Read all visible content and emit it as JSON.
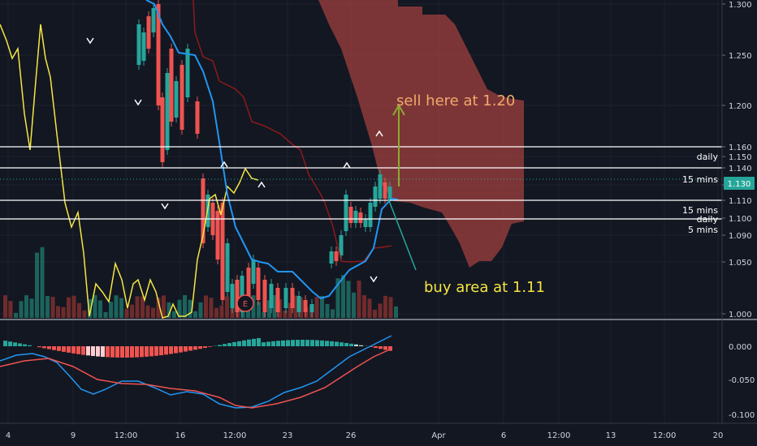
{
  "chart_data": {
    "type": "candlestick",
    "price_axis": {
      "ticks": [
        "1.300",
        "1.250",
        "1.200",
        "1.160",
        "1.150",
        "1.140",
        "1.130",
        "1.110",
        "1.100",
        "1.090",
        "1.050",
        "1.000"
      ],
      "badge": "1.130",
      "badge_color": "#26a69a"
    },
    "osc_axis": {
      "ticks": [
        "0.000",
        "-0.050",
        "-0.100"
      ]
    },
    "time_axis": {
      "ticks": [
        "4",
        "9",
        "12:00",
        "16",
        "12:00",
        "23",
        "26",
        "Apr",
        "6",
        "12:00",
        "13",
        "12:00",
        "20"
      ]
    },
    "horizontal_levels": [
      {
        "label": "",
        "value": 1.16
      },
      {
        "label": "daily",
        "value": 1.15
      },
      {
        "label": "",
        "value": 1.14
      },
      {
        "label": "15 mins",
        "value": 1.13,
        "dotted": true
      },
      {
        "label": "",
        "value": 1.11
      },
      {
        "label": "15 mins",
        "value": 1.105
      },
      {
        "label": "daily",
        "value": 1.1
      },
      {
        "label": "5 mins",
        "value": 1.095
      }
    ],
    "annotations": [
      {
        "text": "sell here at 1.20",
        "color": "#f2a96a"
      },
      {
        "text": "buy area at 1.11",
        "color": "#f5e642"
      }
    ],
    "event_marker": "E",
    "colors": {
      "up": "#26a69a",
      "down": "#ef5350",
      "cloud": "#a0403f",
      "kijun": "#2196f3",
      "span": "#f5e642",
      "base": "#8b1a1a"
    }
  }
}
